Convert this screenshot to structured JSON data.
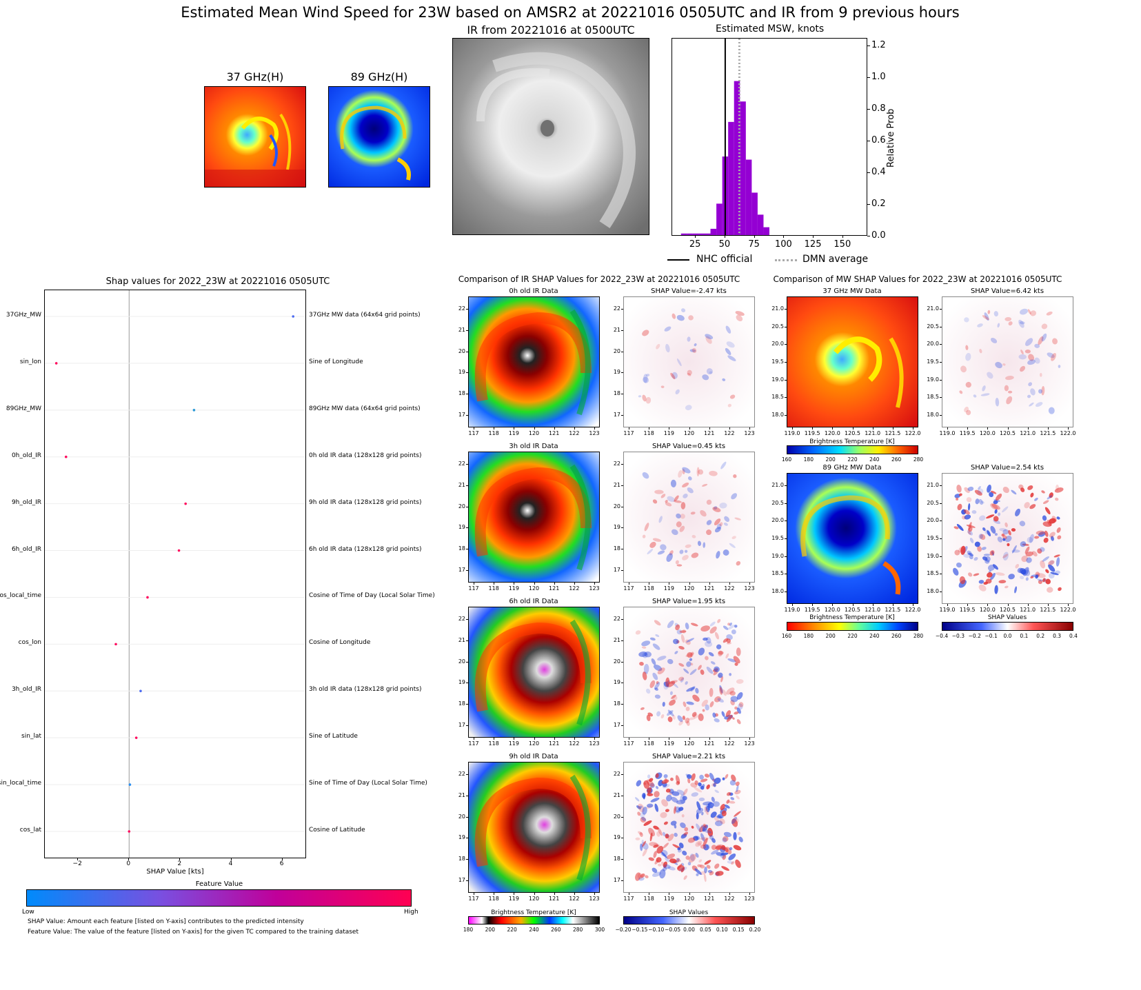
{
  "suptitle": "Estimated Mean Wind Speed for 23W based on AMSR2 at 20221016 0505UTC and IR from 9 previous hours",
  "top": {
    "mw37_title": "37 GHz(H)",
    "mw89_title": "89 GHz(H)",
    "ir_title": "IR from 20221016 at 0500UTC"
  },
  "chart_data": [
    {
      "type": "bar",
      "title": "Estimated MSW, knots",
      "ylabel": "Relative Prob",
      "xticks": [
        25,
        50,
        75,
        100,
        125,
        150
      ],
      "yticks": [
        0.0,
        0.2,
        0.4,
        0.6,
        0.8,
        1.0,
        1.2
      ],
      "xlim": [
        5,
        170
      ],
      "ylim": [
        0,
        1.25
      ],
      "bin_width": 5,
      "bins_x": [
        15,
        20,
        25,
        30,
        35,
        40,
        45,
        50,
        55,
        60,
        65,
        70,
        75,
        80,
        85
      ],
      "values": [
        0.01,
        0.01,
        0.01,
        0.01,
        0.01,
        0.04,
        0.2,
        0.5,
        0.72,
        0.98,
        0.85,
        0.48,
        0.27,
        0.13,
        0.05
      ],
      "nhc_official": 50,
      "dmn_average": 62,
      "legend": [
        "NHC official",
        "DMN average"
      ],
      "colors": {
        "bars": "#9400d3",
        "nhc": "#000000",
        "dmn": "#aaaaaa"
      }
    },
    {
      "type": "scatter",
      "title": "Shap values for 2022_23W at 20221016 0505UTC",
      "xlabel": "SHAP Value [kts]",
      "xticks": [
        -2,
        0,
        2,
        4,
        6
      ],
      "xlim": [
        -3.3,
        6.9
      ],
      "features": [
        {
          "name": "37GHz_MW",
          "desc": "37GHz MW data (64x64 grid points)",
          "shap": 6.42,
          "color": "#4e6cf0"
        },
        {
          "name": "sin_lon",
          "desc": "Sine of Longitude",
          "shap": -2.85,
          "color": "#ff0a5e"
        },
        {
          "name": "89GHz_MW",
          "desc": "89GHz MW data (64x64 grid points)",
          "shap": 2.54,
          "color": "#2b9ad6"
        },
        {
          "name": "0h_old_IR",
          "desc": "0h old IR data (128x128 grid points)",
          "shap": -2.47,
          "color": "#ff0a5e"
        },
        {
          "name": "9h_old_IR",
          "desc": "9h old IR data (128x128 grid points)",
          "shap": 2.21,
          "color": "#ff0a5e"
        },
        {
          "name": "6h_old_IR",
          "desc": "6h old IR data (128x128 grid points)",
          "shap": 1.95,
          "color": "#ff0a5e"
        },
        {
          "name": "cos_local_time",
          "desc": "Cosine of Time of Day (Local Solar Time)",
          "shap": 0.72,
          "color": "#ff0a5e"
        },
        {
          "name": "cos_lon",
          "desc": "Cosine of Longitude",
          "shap": -0.52,
          "color": "#ff0a5e"
        },
        {
          "name": "3h_old_IR",
          "desc": "3h old IR data (128x128 grid points)",
          "shap": 0.45,
          "color": "#4e6cf0"
        },
        {
          "name": "sin_lat",
          "desc": "Sine of Latitude",
          "shap": 0.28,
          "color": "#ff0a5e"
        },
        {
          "name": "sin_local_time",
          "desc": "Sine of Time of Day (Local Solar Time)",
          "shap": 0.03,
          "color": "#2b8ff0"
        },
        {
          "name": "cos_lat",
          "desc": "Cosine of Latitude",
          "shap": 0.0,
          "color": "#ff0a5e"
        }
      ],
      "colorbar_title": "Feature Value",
      "colorbar_low": "Low",
      "colorbar_high": "High",
      "note1": "SHAP Value: Amount each feature [listed on Y-axis] contributes to the predicted intensity",
      "note2": "Feature Value: The value of the feature [listed on Y-axis] for the given TC compared to the training dataset"
    }
  ],
  "ir_section": {
    "title": "Comparison of IR SHAP Values for 2022_23W at 20221016 0505UTC",
    "panels": [
      {
        "label": "0h old IR Data",
        "shap": "SHAP Value=-2.47 kts"
      },
      {
        "label": "3h old IR Data",
        "shap": "SHAP Value=0.45 kts"
      },
      {
        "label": "6h old IR Data",
        "shap": "SHAP Value=1.95 kts"
      },
      {
        "label": "9h old IR Data",
        "shap": "SHAP Value=2.21 kts"
      }
    ],
    "xticks": [
      "117",
      "118",
      "119",
      "120",
      "121",
      "122",
      "123"
    ],
    "yticks": [
      "22",
      "21",
      "20",
      "19",
      "18",
      "17"
    ],
    "cbar_bt_label": "Brightness Temperature [K]",
    "cbar_bt_ticks": [
      "180",
      "200",
      "220",
      "240",
      "260",
      "280",
      "300"
    ],
    "cbar_shap_label": "SHAP Values",
    "cbar_shap_ticks": [
      "−0.20",
      "−0.15",
      "−0.10",
      "−0.05",
      "0.00",
      "0.05",
      "0.10",
      "0.15",
      "0.20"
    ]
  },
  "mw_section": {
    "title": "Comparison of MW SHAP Values for 2022_23W at 20221016 0505UTC",
    "panels": [
      {
        "label": "37 GHz MW Data",
        "shap": "SHAP Value=6.42 kts"
      },
      {
        "label": "89 GHz MW Data",
        "shap": "SHAP Value=2.54 kts"
      }
    ],
    "xticks": [
      "119.0",
      "119.5",
      "120.0",
      "120.5",
      "121.0",
      "121.5",
      "122.0"
    ],
    "yticks": [
      "21.0",
      "20.5",
      "20.0",
      "19.5",
      "19.0",
      "18.5",
      "18.0"
    ],
    "cbar_bt_label": "Brightness Temperature [K]",
    "cbar_bt_ticks": [
      "160",
      "180",
      "200",
      "220",
      "240",
      "260",
      "280"
    ],
    "cbar_shap_label": "SHAP Values",
    "cbar_shap_ticks": [
      "−0.4",
      "−0.3",
      "−0.2",
      "−0.1",
      "0.0",
      "0.1",
      "0.2",
      "0.3",
      "0.4"
    ]
  }
}
